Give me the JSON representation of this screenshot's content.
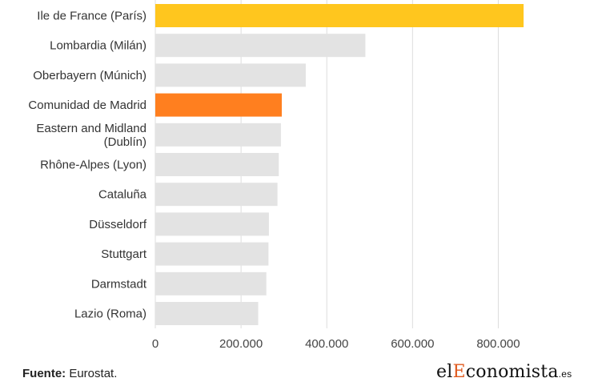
{
  "chart_data": {
    "type": "bar",
    "orientation": "horizontal",
    "categories": [
      "Ile de France (París)",
      "Lombardia (Milán)",
      "Oberbayern (Múnich)",
      "Comunidad de Madrid",
      "Eastern and Midland (Dublín)",
      "Rhône-Alpes (Lyon)",
      "Cataluña",
      "Düsseldorf",
      "Stuttgart",
      "Darmstadt",
      "Lazio (Roma)"
    ],
    "category_lines": [
      [
        "Ile de France (París)"
      ],
      [
        "Lombardia (Milán)"
      ],
      [
        "Oberbayern (Múnich)"
      ],
      [
        "Comunidad de Madrid"
      ],
      [
        "Eastern and Midland",
        "(Dublín)"
      ],
      [
        "Rhône-Alpes (Lyon)"
      ],
      [
        "Cataluña"
      ],
      [
        "Düsseldorf"
      ],
      [
        "Stuttgart"
      ],
      [
        "Darmstadt"
      ],
      [
        "Lazio (Roma)"
      ]
    ],
    "values": [
      859000,
      490000,
      351000,
      295000,
      293000,
      288000,
      285000,
      265000,
      264000,
      259000,
      240000
    ],
    "colors": [
      "#ffc61e",
      "#e3e3e3",
      "#e3e3e3",
      "#ff7f1f",
      "#e3e3e3",
      "#e3e3e3",
      "#e3e3e3",
      "#e3e3e3",
      "#e3e3e3",
      "#e3e3e3",
      "#e3e3e3"
    ],
    "xlim": [
      0,
      900000
    ],
    "xticks": [
      0,
      200000,
      400000,
      600000,
      800000
    ],
    "xtick_labels": [
      "0",
      "200.000",
      "400.000",
      "600.000",
      "800.000"
    ],
    "grid": true,
    "gridline_color": "#dddddd"
  },
  "footer": {
    "source_label": "Fuente:",
    "source_text": " Eurostat.",
    "logo_prefix": "el",
    "logo_accent": "E",
    "logo_main": "conomista",
    "logo_suffix": ".es",
    "logo_accent_color": "#e05a1e"
  }
}
